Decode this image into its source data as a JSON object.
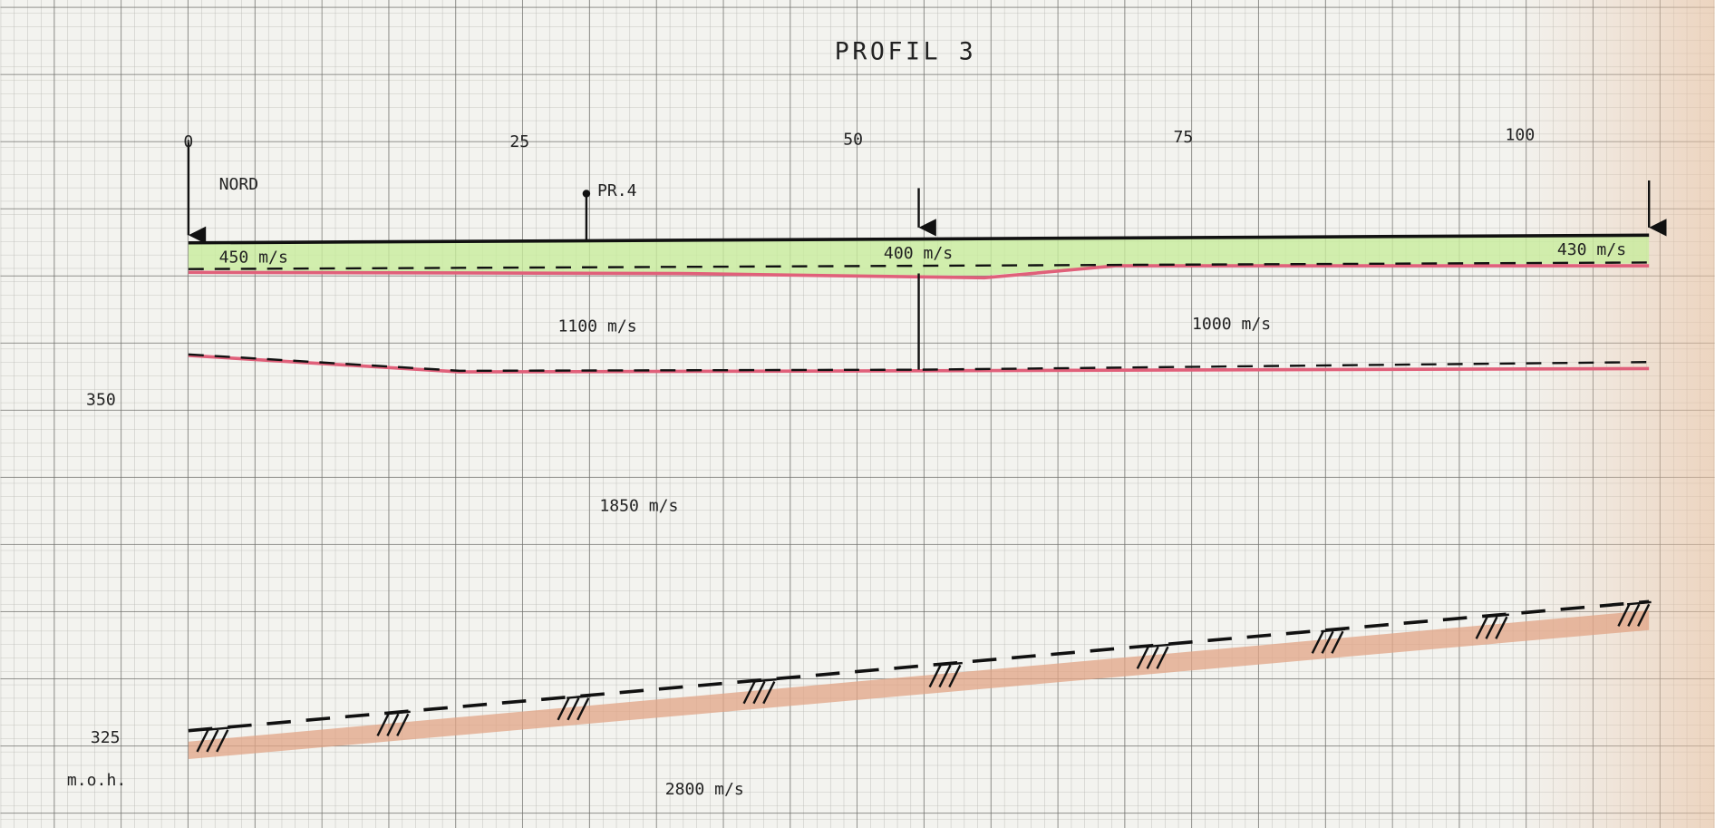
{
  "title": "PROFIL 3",
  "distance_labels": [
    "0",
    "25",
    "50",
    "75",
    "100"
  ],
  "elevation_labels": [
    "350",
    "325"
  ],
  "elevation_unit": "m.o.h.",
  "markers": {
    "direction": "NORD",
    "borehole": "PR.4"
  },
  "layers": {
    "surface": [
      "450 m/s",
      "400 m/s",
      "430 m/s"
    ],
    "second": [
      "1100 m/s",
      "1000 m/s"
    ],
    "third": "1850 m/s",
    "bedrock": "2800 m/s"
  }
}
